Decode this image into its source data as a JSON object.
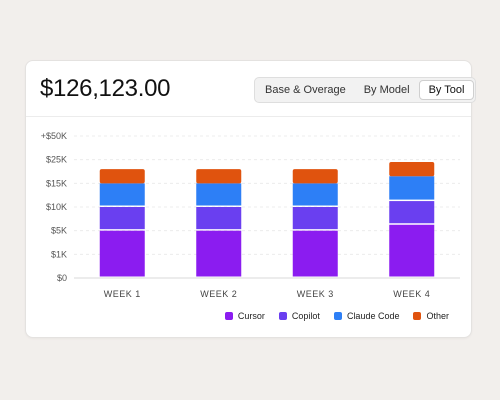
{
  "header": {
    "total": "$126,123.00"
  },
  "tabs": [
    {
      "label": "Base & Overage",
      "active": false
    },
    {
      "label": "By Model",
      "active": false
    },
    {
      "label": "By Tool",
      "active": true
    }
  ],
  "colors": {
    "cursor": "#8b1cf0",
    "copilot": "#6a3ff0",
    "claude_code": "#2d7ff6",
    "other": "#e0530e"
  },
  "chart_data": {
    "type": "bar",
    "stacked": true,
    "categories": [
      "WEEK 1",
      "WEEK 2",
      "WEEK 3",
      "WEEK 4"
    ],
    "y_ticks": [
      "$0",
      "$1K",
      "$5K",
      "$10K",
      "$15K",
      "$25K",
      "+$50K"
    ],
    "series": [
      {
        "name": "Cursor",
        "key": "cursor",
        "values": [
          2.0,
          2.0,
          2.0,
          2.25
        ]
      },
      {
        "name": "Copilot",
        "key": "copilot",
        "values": [
          1.0,
          1.0,
          1.0,
          1.0
        ]
      },
      {
        "name": "Claude Code",
        "key": "claude_code",
        "values": [
          1.0,
          1.0,
          1.0,
          1.05
        ]
      },
      {
        "name": "Other",
        "key": "other",
        "values": [
          0.6,
          0.6,
          0.6,
          0.6
        ]
      }
    ],
    "ylim": [
      0,
      6
    ],
    "grid": true,
    "legend": "bottom-right"
  }
}
